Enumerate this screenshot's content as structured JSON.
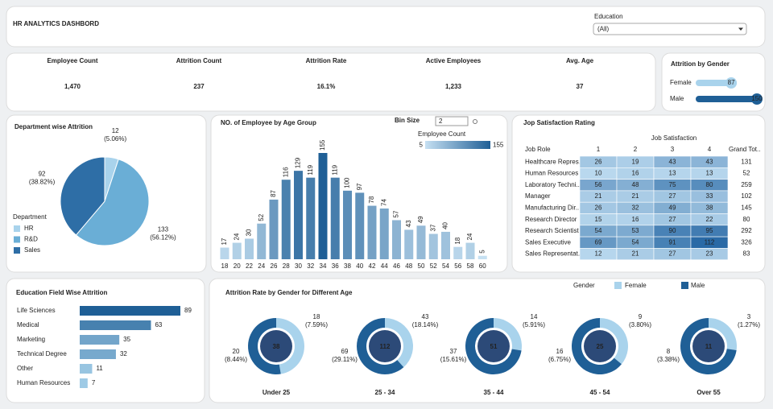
{
  "header": {
    "title": "HR ANALYTICS DASHBORD",
    "filter_label": "Education",
    "filter_value": "(All)"
  },
  "kpis": [
    {
      "label": "Employee Count",
      "value": "1,470"
    },
    {
      "label": "Attrition Count",
      "value": "237"
    },
    {
      "label": "Attrition Rate",
      "value": "16.1%"
    },
    {
      "label": "Active Employees",
      "value": "1,233"
    },
    {
      "label": "Avg. Age",
      "value": "37"
    }
  ],
  "chart_data": [
    {
      "type": "hbar",
      "title": "Attrition by Gender",
      "categories": [
        "Female",
        "Male"
      ],
      "values": [
        87,
        150
      ],
      "colors": [
        "#a9d3ec",
        "#1f5f96"
      ]
    },
    {
      "type": "pie",
      "title": "Department wise Attrition",
      "legend_title": "Department",
      "categories": [
        "HR",
        "R&D",
        "Sales"
      ],
      "values": [
        12,
        133,
        92
      ],
      "percent_labels": [
        "(5.06%)",
        "(56.12%)",
        "(38.82%)"
      ],
      "colors": [
        "#a9d3ec",
        "#6aaed6",
        "#2e6ea6"
      ]
    },
    {
      "type": "bar",
      "title": "NO. of Employee by Age Group",
      "bin_size_label": "Bin Size",
      "bin_size": 2,
      "categories": [
        18,
        20,
        22,
        24,
        26,
        28,
        30,
        32,
        34,
        36,
        38,
        40,
        42,
        44,
        46,
        48,
        50,
        52,
        54,
        56,
        58,
        60
      ],
      "values": [
        17,
        24,
        30,
        52,
        87,
        116,
        129,
        119,
        155,
        119,
        100,
        97,
        78,
        74,
        57,
        43,
        49,
        37,
        40,
        18,
        24,
        5
      ],
      "color_legend": {
        "title": "Employee Count",
        "min": 5,
        "max": 155
      },
      "colors": [
        "#c6e0f2",
        "#1f5f96"
      ]
    },
    {
      "type": "heatmap",
      "title": "Jop Satisfaction Rating",
      "column_title": "Job Satisfaction",
      "row_header": "Job Role",
      "columns": [
        "1",
        "2",
        "3",
        "4"
      ],
      "total_header": "Grand Tot..",
      "rows": [
        "Healthcare Repres..",
        "Human Resources",
        "Laboratory Techni..",
        "Manager",
        "Manufacturing Dir..",
        "Research Director",
        "Research Scientist",
        "Sales Executive",
        "Sales Representat.."
      ],
      "values": [
        [
          26,
          19,
          43,
          43
        ],
        [
          10,
          16,
          13,
          13
        ],
        [
          56,
          48,
          75,
          80
        ],
        [
          21,
          21,
          27,
          33
        ],
        [
          26,
          32,
          49,
          38
        ],
        [
          15,
          16,
          27,
          22
        ],
        [
          54,
          53,
          90,
          95
        ],
        [
          69,
          54,
          91,
          112
        ],
        [
          12,
          21,
          27,
          23
        ]
      ],
      "totals": [
        131,
        52,
        259,
        102,
        145,
        80,
        292,
        326,
        83
      ],
      "colors": [
        "#b9d8ee",
        "#2a6aa6"
      ]
    },
    {
      "type": "hbar",
      "title": "Education Field Wise Attrition",
      "categories": [
        "Life Sciences",
        "Medical",
        "Marketing",
        "Technical Degree",
        "Other",
        "Human Resources"
      ],
      "values": [
        89,
        63,
        35,
        32,
        11,
        7
      ],
      "color_range": [
        "#a9d3ec",
        "#1f5f96"
      ]
    },
    {
      "type": "donut",
      "title": "Attrition Rate by Gender for Different Age",
      "legend_title": "Gender",
      "categories": [
        "Under 25",
        "25 - 34",
        "35 - 44",
        "45 - 54",
        "Over 55"
      ],
      "totals": [
        38,
        112,
        51,
        25,
        11
      ],
      "series": [
        {
          "name": "Female",
          "color": "#a9d3ec",
          "values": [
            18,
            43,
            14,
            9,
            3
          ],
          "percent_labels": [
            "(7.59%)",
            "(18.14%)",
            "(5.91%)",
            "(3.80%)",
            "(1.27%)"
          ]
        },
        {
          "name": "Male",
          "color": "#1f5f96",
          "values": [
            20,
            69,
            37,
            16,
            8
          ],
          "percent_labels": [
            "(8.44%)",
            "(29.11%)",
            "(15.61%)",
            "(6.75%)",
            "(3.38%)"
          ]
        }
      ],
      "center_color": "#2c4a78"
    }
  ]
}
